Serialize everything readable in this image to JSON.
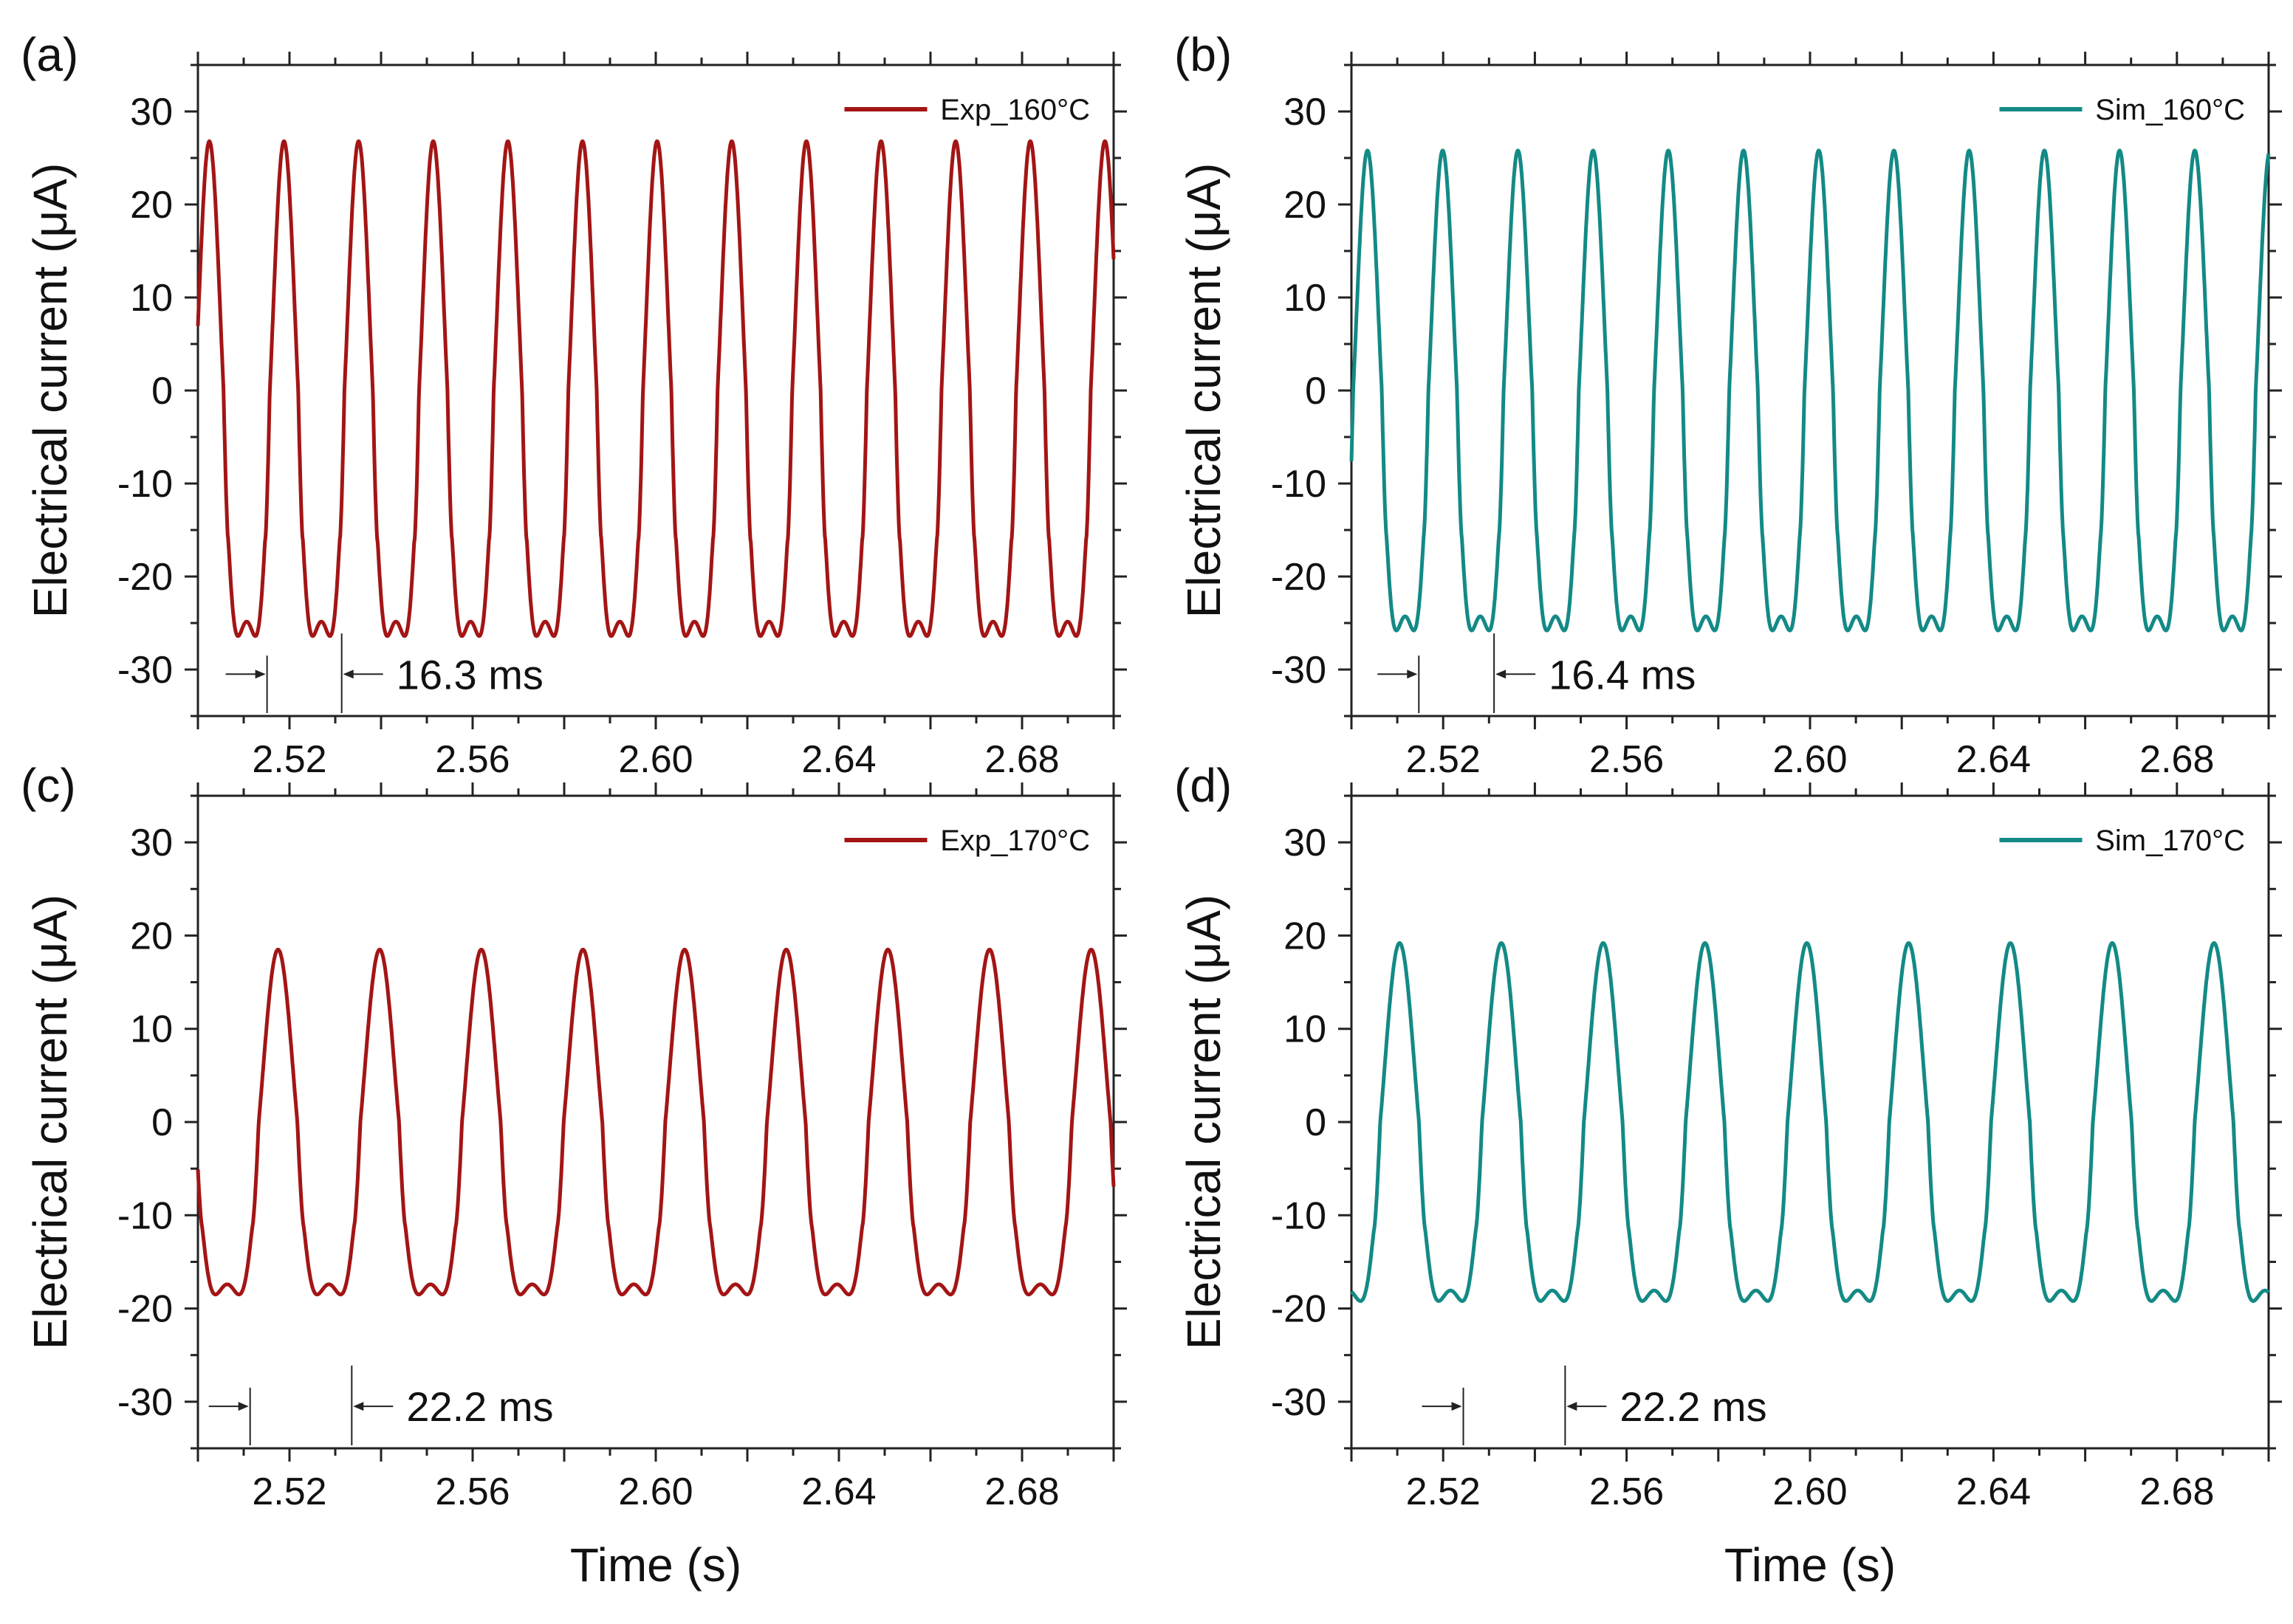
{
  "chart_data": [
    {
      "panel_label": "(a)",
      "type": "line",
      "ylabel": "Electrical current (μA)",
      "xlabel": "",
      "xlim": [
        2.5,
        2.7
      ],
      "ylim": [
        -35,
        35
      ],
      "xticks": [
        "2.52",
        "2.56",
        "2.60",
        "2.64",
        "2.68"
      ],
      "yticks": [
        "30",
        "20",
        "10",
        "0",
        "-10",
        "-20",
        "-30"
      ],
      "legend_position": "top-right",
      "series": [
        {
          "name": "Exp_160°C",
          "color": "#a31515",
          "period_s": 0.0163,
          "first_max_t": 2.5025,
          "peak_max": 26.8,
          "peak_min": -26.4,
          "secondary_max": 9.8,
          "secondary_min": -9.6
        }
      ],
      "annotation": {
        "text": "16.3 ms",
        "t1": 2.5151,
        "t2": 2.5314
      }
    },
    {
      "panel_label": "(b)",
      "type": "line",
      "ylabel": "Electrical current (μA)",
      "xlabel": "",
      "xlim": [
        2.5,
        2.7
      ],
      "ylim": [
        -35,
        35
      ],
      "xticks": [
        "2.52",
        "2.56",
        "2.60",
        "2.64",
        "2.68"
      ],
      "yticks": [
        "30",
        "20",
        "10",
        "0",
        "-10",
        "-20",
        "-30"
      ],
      "legend_position": "top-right",
      "series": [
        {
          "name": "Sim_160°C",
          "color": "#138a86",
          "period_s": 0.0164,
          "first_max_t": 2.5035,
          "peak_max": 25.8,
          "peak_min": -25.8,
          "secondary_max": 4.2,
          "secondary_min": -4.2
        }
      ],
      "annotation": {
        "text": "16.4 ms",
        "t1": 2.5147,
        "t2": 2.5311
      }
    },
    {
      "panel_label": "(c)",
      "type": "line",
      "ylabel": "Electrical current (μA)",
      "xlabel": "Time (s)",
      "xlim": [
        2.5,
        2.7
      ],
      "ylim": [
        -35,
        35
      ],
      "xticks": [
        "2.52",
        "2.56",
        "2.60",
        "2.64",
        "2.68"
      ],
      "yticks": [
        "30",
        "20",
        "10",
        "0",
        "-10",
        "-20",
        "-30"
      ],
      "legend_position": "top-right",
      "series": [
        {
          "name": "Exp_170°C",
          "color": "#a31515",
          "period_s": 0.0222,
          "first_max_t": 2.5175,
          "peak_max": 18.5,
          "peak_min": -18.5,
          "secondary_max": 9.4,
          "secondary_min": -8.8
        }
      ],
      "annotation": {
        "text": "22.2 ms",
        "t1": 2.5114,
        "t2": 2.5336
      }
    },
    {
      "panel_label": "(d)",
      "type": "line",
      "ylabel": "Electrical current (μA)",
      "xlabel": "Time (s)",
      "xlim": [
        2.5,
        2.7
      ],
      "ylim": [
        -35,
        35
      ],
      "xticks": [
        "2.52",
        "2.56",
        "2.60",
        "2.64",
        "2.68"
      ],
      "yticks": [
        "30",
        "20",
        "10",
        "0",
        "-10",
        "-20",
        "-30"
      ],
      "legend_position": "top-right",
      "series": [
        {
          "name": "Sim_170°C",
          "color": "#138a86",
          "period_s": 0.0222,
          "first_max_t": 2.5105,
          "peak_max": 19.2,
          "peak_min": -19.2,
          "secondary_max": 3.1,
          "secondary_min": -3.1
        }
      ],
      "annotation": {
        "text": "22.2 ms",
        "t1": 2.5244,
        "t2": 2.5466
      }
    }
  ]
}
